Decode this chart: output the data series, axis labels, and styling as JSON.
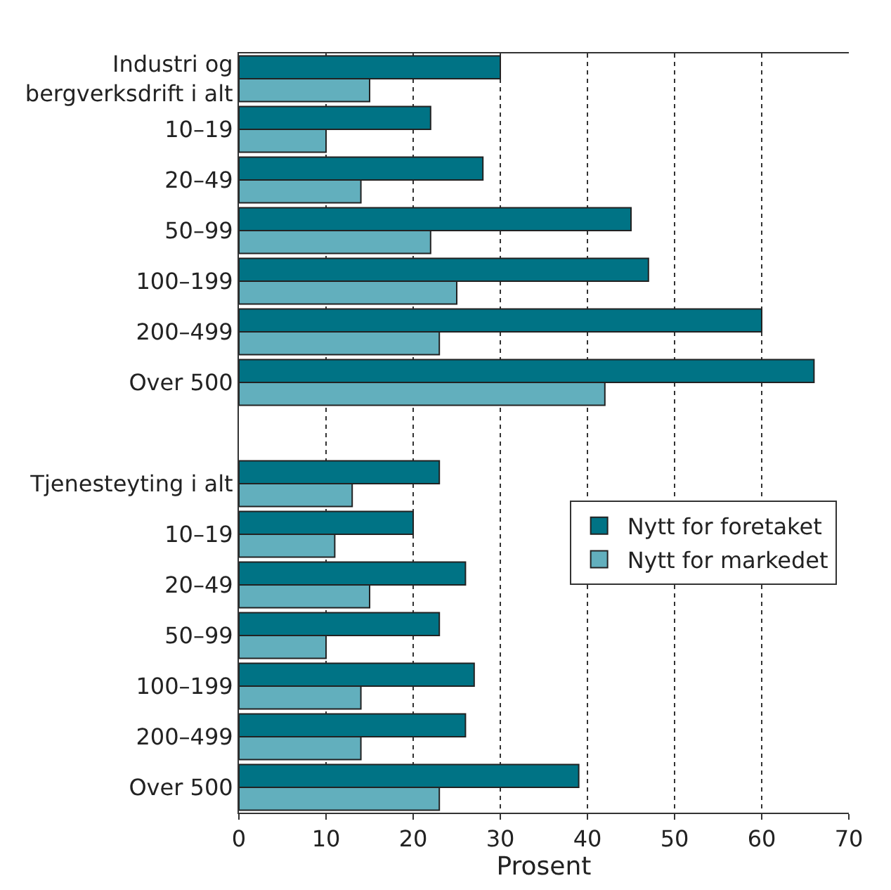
{
  "chart_data": {
    "type": "bar",
    "orientation": "horizontal",
    "xlabel": "Prosent",
    "categories": [
      "Industri og bergverksdrift i alt",
      "10–19",
      "20–49",
      "50–99",
      "100–199",
      "200–499",
      "Over 500",
      null,
      "Tjenesteyting i alt",
      "10–19",
      "20–49",
      "50–99",
      "100–199",
      "200–499",
      "Over 500"
    ],
    "series": [
      {
        "name": "Nytt for foretaket",
        "color": "#007385",
        "values": [
          30,
          22,
          28,
          45,
          47,
          60,
          66,
          null,
          23,
          20,
          26,
          23,
          27,
          26,
          39
        ]
      },
      {
        "name": "Nytt for markedet",
        "color": "#62afbd",
        "values": [
          15,
          10,
          14,
          22,
          25,
          23,
          42,
          null,
          13,
          11,
          15,
          10,
          14,
          14,
          23
        ]
      }
    ],
    "xlim": [
      0,
      70
    ],
    "xticks": [
      0,
      10,
      20,
      30,
      40,
      50,
      60,
      70
    ],
    "grid": "x",
    "legend": "bottom right"
  }
}
